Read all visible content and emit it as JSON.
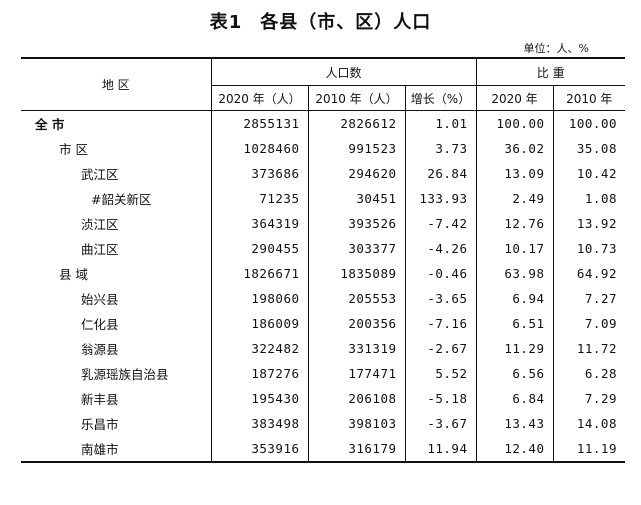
{
  "title": {
    "label": "表1",
    "text": "各县（市、区）人口"
  },
  "unit": "单位：人、%",
  "headers": {
    "region": "地 区",
    "population": "人口数",
    "ratio": "比 重",
    "pop_2020": "2020 年（人）",
    "pop_2010": "2010 年（人）",
    "growth": "增长（%）",
    "ratio_2020": "2020 年",
    "ratio_2010": "2010 年"
  },
  "rows": [
    {
      "name": "全  市",
      "p2020": "2855131",
      "p2010": "2826612",
      "growth": "1.01",
      "r2020": "100.00",
      "r2010": "100.00"
    },
    {
      "name": "市 区",
      "p2020": "1028460",
      "p2010": "991523",
      "growth": "3.73",
      "r2020": "36.02",
      "r2010": "35.08"
    },
    {
      "name": "武江区",
      "p2020": "373686",
      "p2010": "294620",
      "growth": "26.84",
      "r2020": "13.09",
      "r2010": "10.42"
    },
    {
      "name": "#韶关新区",
      "p2020": "71235",
      "p2010": "30451",
      "growth": "133.93",
      "r2020": "2.49",
      "r2010": "1.08"
    },
    {
      "name": "浈江区",
      "p2020": "364319",
      "p2010": "393526",
      "growth": "-7.42",
      "r2020": "12.76",
      "r2010": "13.92"
    },
    {
      "name": "曲江区",
      "p2020": "290455",
      "p2010": "303377",
      "growth": "-4.26",
      "r2020": "10.17",
      "r2010": "10.73"
    },
    {
      "name": "县 域",
      "p2020": "1826671",
      "p2010": "1835089",
      "growth": "-0.46",
      "r2020": "63.98",
      "r2010": "64.92"
    },
    {
      "name": "始兴县",
      "p2020": "198060",
      "p2010": "205553",
      "growth": "-3.65",
      "r2020": "6.94",
      "r2010": "7.27"
    },
    {
      "name": "仁化县",
      "p2020": "186009",
      "p2010": "200356",
      "growth": "-7.16",
      "r2020": "6.51",
      "r2010": "7.09"
    },
    {
      "name": "翁源县",
      "p2020": "322482",
      "p2010": "331319",
      "growth": "-2.67",
      "r2020": "11.29",
      "r2010": "11.72"
    },
    {
      "name": "乳源瑶族自治县",
      "p2020": "187276",
      "p2010": "177471",
      "growth": "5.52",
      "r2020": "6.56",
      "r2010": "6.28"
    },
    {
      "name": "新丰县",
      "p2020": "195430",
      "p2010": "206108",
      "growth": "-5.18",
      "r2020": "6.84",
      "r2010": "7.29"
    },
    {
      "name": "乐昌市",
      "p2020": "383498",
      "p2010": "398103",
      "growth": "-3.67",
      "r2020": "13.43",
      "r2010": "14.08"
    },
    {
      "name": "南雄市",
      "p2020": "353916",
      "p2010": "316179",
      "growth": "11.94",
      "r2020": "12.40",
      "r2010": "11.19"
    }
  ]
}
